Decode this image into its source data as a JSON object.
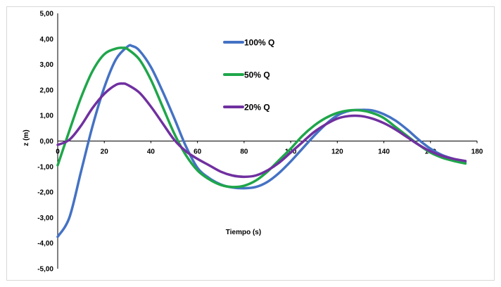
{
  "chart_data": {
    "type": "line",
    "title": "",
    "xlabel": "Tiempo (s)",
    "ylabel": "z (m)",
    "xlim": [
      0,
      180
    ],
    "ylim": [
      -5,
      5
    ],
    "x_ticks": [
      "0",
      "20",
      "40",
      "60",
      "80",
      "100",
      "120",
      "140",
      "160",
      "180"
    ],
    "y_ticks": [
      "5,00",
      "4,00",
      "3,00",
      "2,00",
      "1,00",
      "0,00",
      "-1,00",
      "-2,00",
      "-3,00",
      "-4,00",
      "-5,00"
    ],
    "grid": false,
    "legend_position": "top-center",
    "series": [
      {
        "name": "100% Q",
        "color": "#4472C4",
        "points": [
          [
            0,
            -3.75
          ],
          [
            5,
            -3.0
          ],
          [
            10,
            -1.2
          ],
          [
            15,
            0.6
          ],
          [
            20,
            2.1
          ],
          [
            25,
            3.2
          ],
          [
            30,
            3.7
          ],
          [
            32,
            3.72
          ],
          [
            35,
            3.55
          ],
          [
            40,
            2.9
          ],
          [
            45,
            1.95
          ],
          [
            50,
            0.9
          ],
          [
            55,
            -0.2
          ],
          [
            60,
            -1.05
          ],
          [
            65,
            -1.45
          ],
          [
            70,
            -1.7
          ],
          [
            75,
            -1.82
          ],
          [
            80,
            -1.85
          ],
          [
            85,
            -1.8
          ],
          [
            90,
            -1.6
          ],
          [
            95,
            -1.25
          ],
          [
            100,
            -0.8
          ],
          [
            105,
            -0.3
          ],
          [
            110,
            0.2
          ],
          [
            115,
            0.65
          ],
          [
            120,
            1.0
          ],
          [
            125,
            1.18
          ],
          [
            130,
            1.22
          ],
          [
            135,
            1.2
          ],
          [
            140,
            1.05
          ],
          [
            145,
            0.8
          ],
          [
            150,
            0.45
          ],
          [
            155,
            0.05
          ],
          [
            160,
            -0.3
          ],
          [
            165,
            -0.55
          ],
          [
            170,
            -0.7
          ],
          [
            175,
            -0.82
          ]
        ]
      },
      {
        "name": "50% Q",
        "color": "#1FA64A",
        "points": [
          [
            0,
            -0.95
          ],
          [
            5,
            0.4
          ],
          [
            10,
            1.7
          ],
          [
            15,
            2.75
          ],
          [
            20,
            3.4
          ],
          [
            25,
            3.62
          ],
          [
            28,
            3.65
          ],
          [
            30,
            3.6
          ],
          [
            35,
            3.2
          ],
          [
            40,
            2.4
          ],
          [
            45,
            1.35
          ],
          [
            50,
            0.3
          ],
          [
            55,
            -0.55
          ],
          [
            60,
            -1.15
          ],
          [
            65,
            -1.5
          ],
          [
            70,
            -1.72
          ],
          [
            75,
            -1.8
          ],
          [
            80,
            -1.75
          ],
          [
            85,
            -1.55
          ],
          [
            90,
            -1.2
          ],
          [
            95,
            -0.75
          ],
          [
            100,
            -0.3
          ],
          [
            105,
            0.2
          ],
          [
            110,
            0.6
          ],
          [
            115,
            0.9
          ],
          [
            120,
            1.1
          ],
          [
            125,
            1.2
          ],
          [
            130,
            1.2
          ],
          [
            135,
            1.1
          ],
          [
            140,
            0.9
          ],
          [
            145,
            0.55
          ],
          [
            150,
            0.2
          ],
          [
            155,
            -0.15
          ],
          [
            160,
            -0.45
          ],
          [
            165,
            -0.65
          ],
          [
            170,
            -0.78
          ],
          [
            175,
            -0.88
          ]
        ]
      },
      {
        "name": "20% Q",
        "color": "#7030A0",
        "points": [
          [
            0,
            -0.15
          ],
          [
            5,
            0.05
          ],
          [
            10,
            0.6
          ],
          [
            15,
            1.3
          ],
          [
            20,
            1.85
          ],
          [
            25,
            2.2
          ],
          [
            28,
            2.25
          ],
          [
            30,
            2.2
          ],
          [
            35,
            1.9
          ],
          [
            40,
            1.35
          ],
          [
            45,
            0.7
          ],
          [
            50,
            0.05
          ],
          [
            55,
            -0.4
          ],
          [
            60,
            -0.7
          ],
          [
            65,
            -0.95
          ],
          [
            70,
            -1.2
          ],
          [
            75,
            -1.35
          ],
          [
            80,
            -1.4
          ],
          [
            85,
            -1.35
          ],
          [
            90,
            -1.15
          ],
          [
            95,
            -0.85
          ],
          [
            100,
            -0.45
          ],
          [
            105,
            -0.05
          ],
          [
            110,
            0.35
          ],
          [
            115,
            0.65
          ],
          [
            120,
            0.88
          ],
          [
            125,
            0.98
          ],
          [
            130,
            0.98
          ],
          [
            135,
            0.88
          ],
          [
            140,
            0.7
          ],
          [
            145,
            0.45
          ],
          [
            150,
            0.15
          ],
          [
            155,
            -0.15
          ],
          [
            160,
            -0.4
          ],
          [
            165,
            -0.58
          ],
          [
            170,
            -0.7
          ],
          [
            175,
            -0.78
          ]
        ]
      }
    ]
  }
}
